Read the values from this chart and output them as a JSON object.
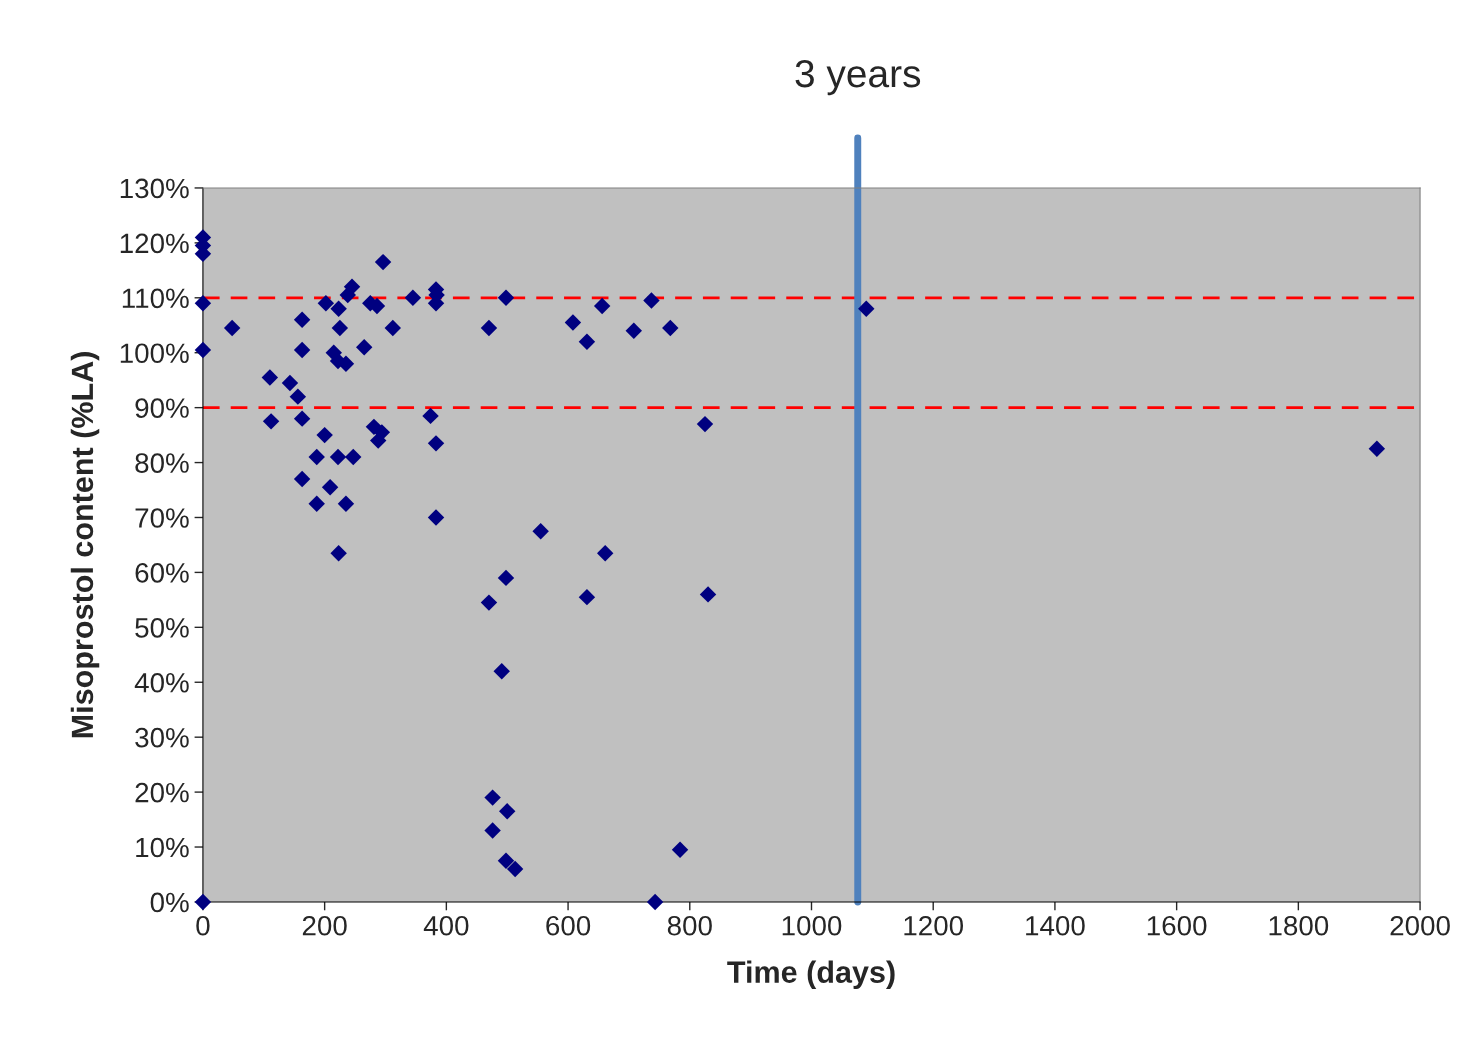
{
  "chart_data": {
    "type": "scatter",
    "xlabel": "Time (days)",
    "ylabel": "Misoprostol content (%LA)",
    "series": [
      {
        "color": "#000080",
        "x": [
          0,
          0,
          0,
          0,
          0,
          0,
          48,
          110,
          112,
          143,
          156,
          163,
          163,
          163,
          163,
          187,
          187,
          200,
          202,
          209,
          215,
          222,
          223,
          225,
          222,
          223,
          235,
          235,
          238,
          245,
          247,
          265,
          275,
          286,
          281,
          288,
          294,
          296,
          312,
          345,
          374,
          383,
          384,
          383,
          383,
          383,
          470,
          470,
          498,
          498,
          555,
          608,
          631,
          631,
          656,
          661,
          708,
          737,
          768,
          825,
          830,
          784,
          743,
          1090,
          1929,
          491,
          476,
          476,
          500,
          498,
          513
        ],
        "values": [
          121,
          119.5,
          118,
          109,
          100.5,
          0,
          104.5,
          95.5,
          87.5,
          94.5,
          92,
          88,
          77,
          106,
          100.5,
          81,
          72.5,
          85,
          109,
          75.5,
          100,
          98.5,
          108,
          104.5,
          81,
          63.5,
          98,
          72.5,
          110.5,
          112,
          81,
          101,
          109,
          108.5,
          86.5,
          84,
          85.5,
          116.5,
          104.5,
          110,
          88.5,
          111.5,
          110.5,
          109,
          83.5,
          70,
          104.5,
          54.5,
          110,
          59,
          67.5,
          105.5,
          102,
          55.5,
          108.5,
          63.5,
          104,
          109.5,
          104.5,
          87,
          56,
          9.5,
          0,
          108,
          82.5,
          42,
          19,
          13,
          16.5,
          7.5,
          6
        ]
      }
    ],
    "marker": "diamond",
    "xlim": [
      0,
      2000
    ],
    "xticks": [
      0,
      200,
      400,
      600,
      800,
      1000,
      1200,
      1400,
      1600,
      1800,
      2000
    ],
    "ylim": [
      0,
      130
    ],
    "yticks": [
      {
        "value": 0,
        "label": "0%"
      },
      {
        "value": 10,
        "label": "10%"
      },
      {
        "value": 20,
        "label": "20%"
      },
      {
        "value": 30,
        "label": "30%"
      },
      {
        "value": 40,
        "label": "40%"
      },
      {
        "value": 50,
        "label": "50%"
      },
      {
        "value": 60,
        "label": "60%"
      },
      {
        "value": 70,
        "label": "70%"
      },
      {
        "value": 80,
        "label": "80%"
      },
      {
        "value": 90,
        "label": "90%"
      },
      {
        "value": 100,
        "label": "100%"
      },
      {
        "value": 110,
        "label": "110%"
      },
      {
        "value": 120,
        "label": "120%"
      },
      {
        "value": 130,
        "label": "130%"
      }
    ],
    "ref_lines": [
      {
        "axis": "y",
        "value": 110,
        "color": "#ff0000",
        "line_style": "dashed"
      },
      {
        "axis": "y",
        "value": 90,
        "color": "#ff0000",
        "line_style": "dashed"
      },
      {
        "axis": "x",
        "value": 1076,
        "label": "3 years",
        "color": "#4f81bd",
        "line_style": "solid"
      }
    ],
    "grid": false
  }
}
